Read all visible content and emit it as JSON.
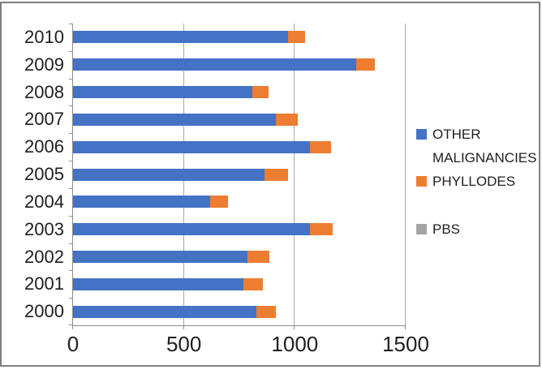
{
  "chart_data": {
    "type": "bar",
    "orientation": "horizontal",
    "stacked": true,
    "categories_order": "top-to-bottom",
    "categories": [
      "2010",
      "2009",
      "2008",
      "2007",
      "2006",
      "2005",
      "2004",
      "2003",
      "2002",
      "2001",
      "2000"
    ],
    "series": [
      {
        "name": "OTHER MALIGNANCIES",
        "color": "#4472C4",
        "values": [
          970,
          1275,
          810,
          915,
          1070,
          865,
          620,
          1070,
          785,
          770,
          825
        ]
      },
      {
        "name": "PHYLLODES",
        "color": "#ED7D31",
        "values": [
          75,
          85,
          70,
          100,
          95,
          105,
          80,
          100,
          100,
          85,
          90
        ]
      },
      {
        "name": "PBS",
        "color": "#A5A5A5",
        "values": [
          0,
          0,
          0,
          0,
          0,
          0,
          0,
          0,
          0,
          0,
          0
        ]
      }
    ],
    "x_axis": {
      "min": 0,
      "max": 1500,
      "ticks": [
        0,
        500,
        1000,
        1500
      ]
    },
    "grid": "vertical-gridlines-on",
    "legend_position": "right"
  },
  "legend": {
    "items": [
      {
        "label": "OTHER MALIGNANCIES",
        "color": "#4472C4"
      },
      {
        "label": "PHYLLODES",
        "color": "#ED7D31"
      },
      {
        "label": "PBS",
        "color": "#A5A5A5"
      }
    ]
  },
  "colors": {
    "bar_blue": "#4472C4",
    "bar_orange": "#ED7D31",
    "legend_gray": "#A5A5A5",
    "gridline": "#A9A9A9",
    "axis": "#8C8C8C",
    "border": "#7F7F7F",
    "text": "#1F1F1F"
  }
}
